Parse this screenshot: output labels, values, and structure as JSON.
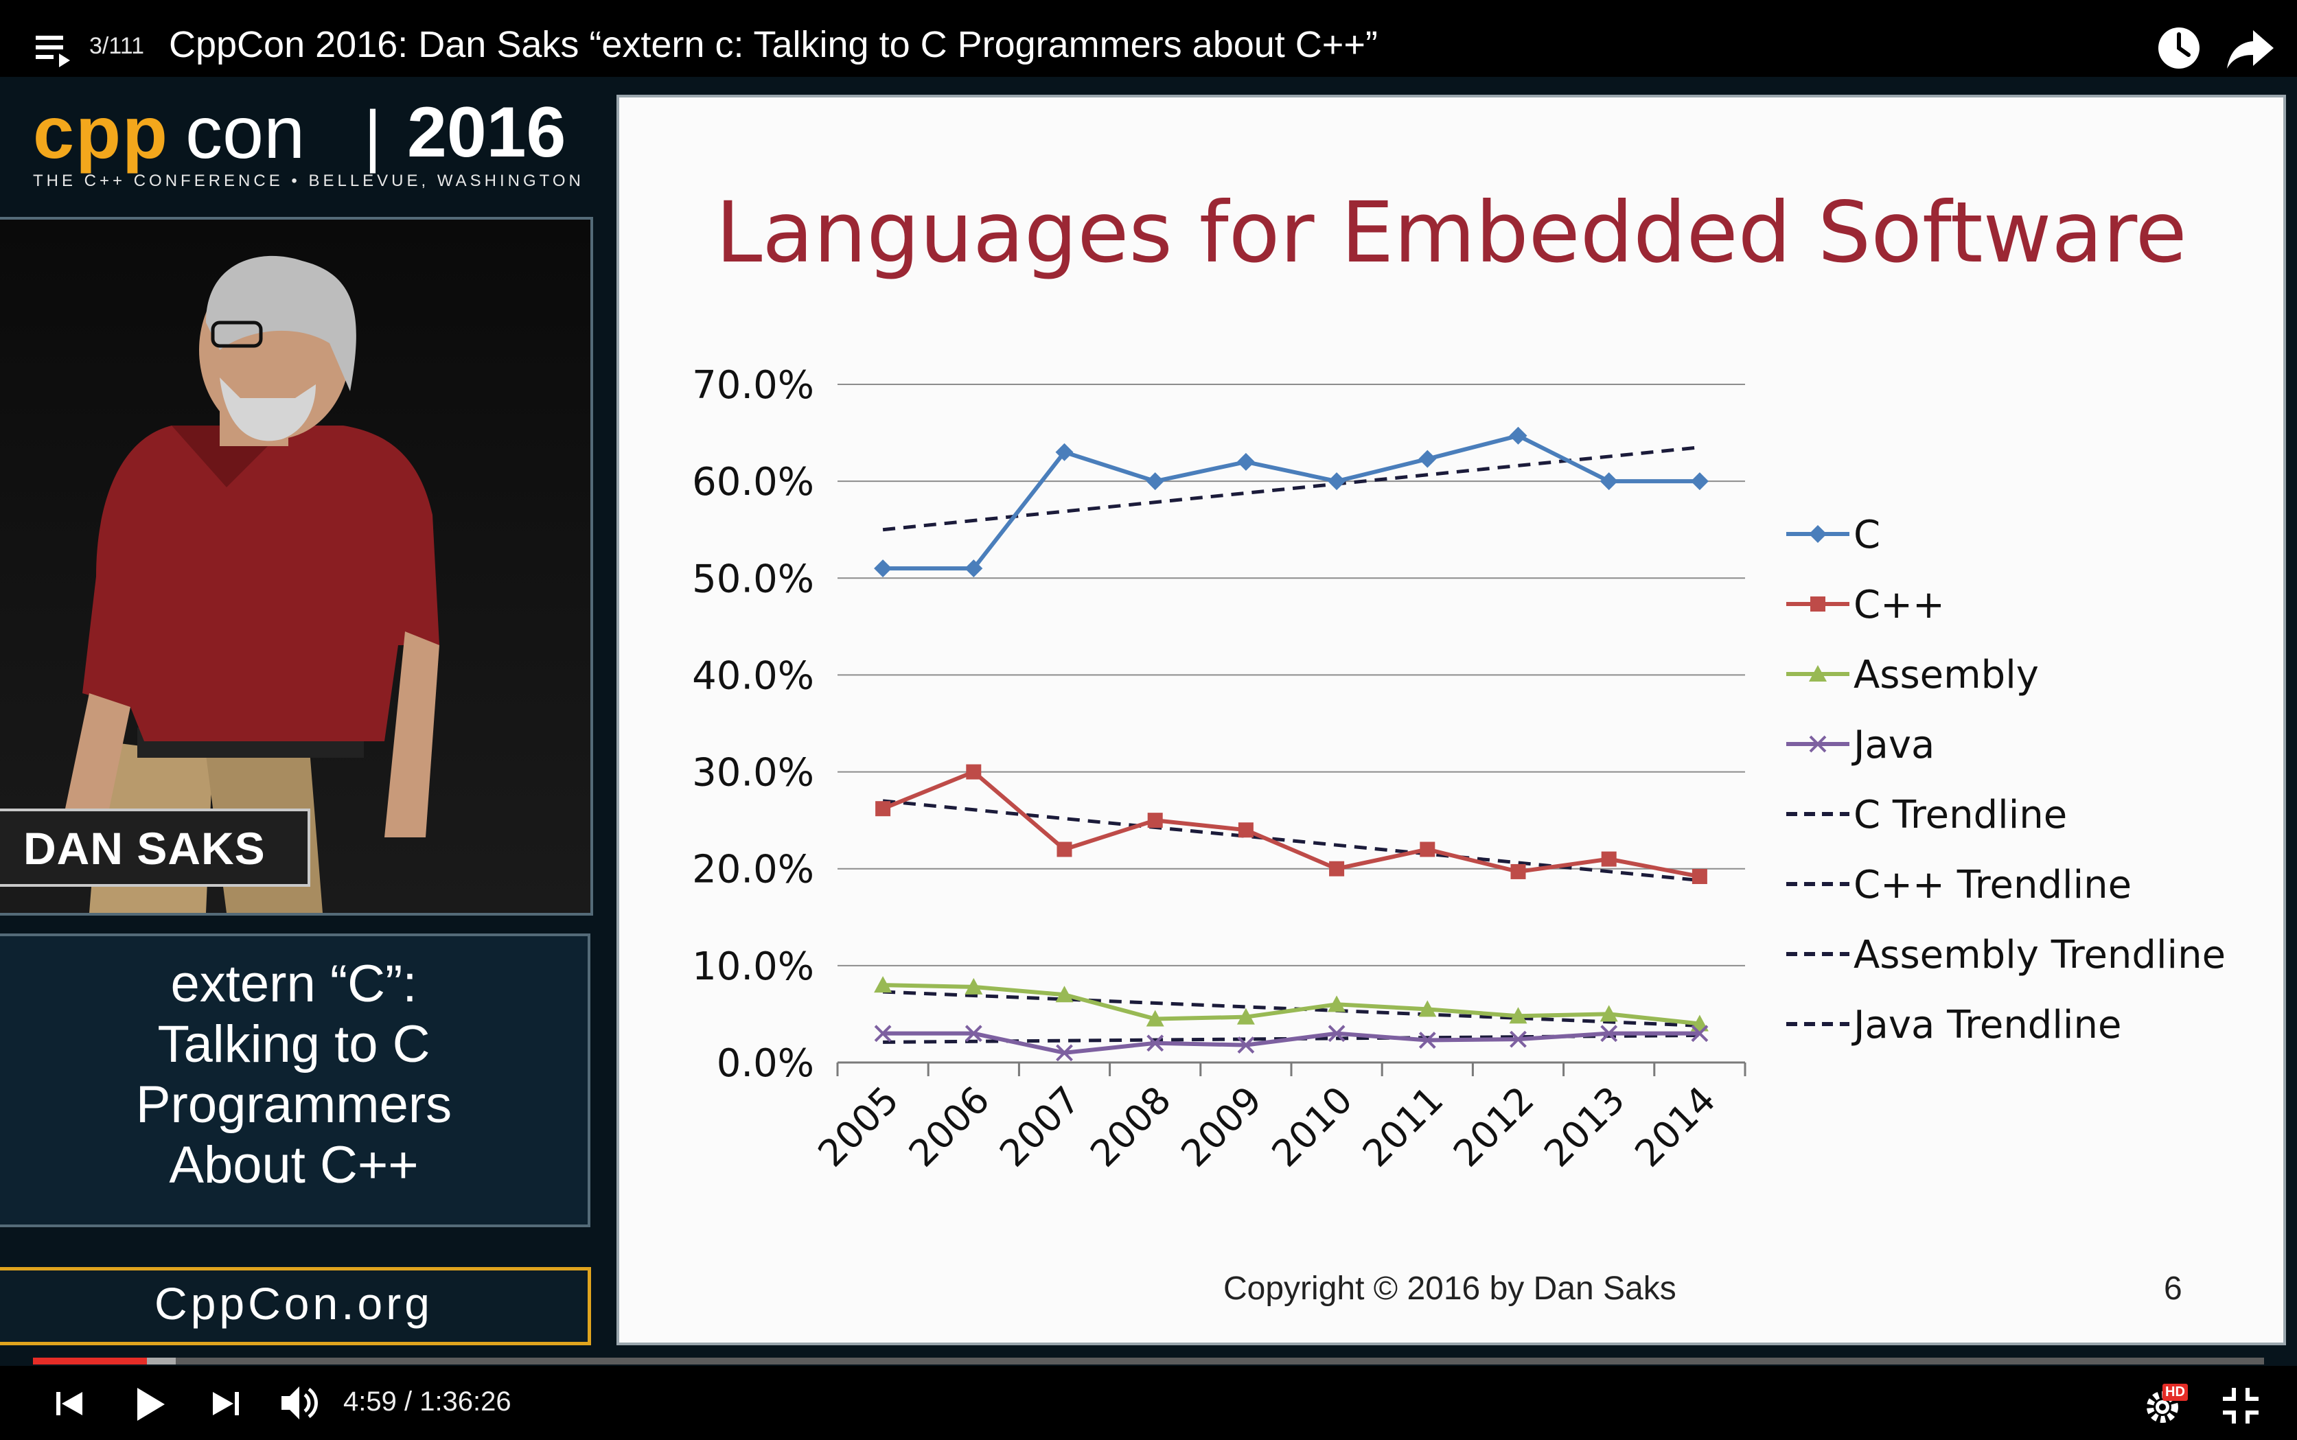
{
  "player": {
    "playlist_position": "3/111",
    "video_title": "CppCon 2016: Dan Saks “extern c: Talking to C Programmers about C++”",
    "current_time": "4:59 / 1:36:26",
    "progress_fraction": 0.051,
    "buffered_fraction": 0.064,
    "hd_label": "HD"
  },
  "logo": {
    "cpp": "cpp",
    "con": "con",
    "separator": "|",
    "year": "2016",
    "tagline": "THE C++ CONFERENCE • BELLEVUE, WASHINGTON"
  },
  "speaker": {
    "name": "DAN SAKS"
  },
  "talk": {
    "lines": [
      "extern “C”:",
      "Talking to C",
      "Programmers",
      "About C++"
    ]
  },
  "site": {
    "url": "CppCon.org"
  },
  "slide": {
    "title": "Languages for Embedded Software",
    "copyright": "Copyright © 2016 by Dan Saks",
    "number": "6"
  },
  "colors": {
    "C": "#4a7ebb",
    "C++": "#be4b48",
    "Assembly": "#98b954",
    "Java": "#7d60a0",
    "trend": "#1b1b3a",
    "title": "#9b2734",
    "accent": "#e52d27",
    "brand": "#f3a71c"
  },
  "chart_data": {
    "type": "line",
    "title": "Languages for Embedded Software",
    "categories": [
      "2005",
      "2006",
      "2007",
      "2008",
      "2009",
      "2010",
      "2011",
      "2012",
      "2013",
      "2014"
    ],
    "y_ticks": [
      "0.0%",
      "10.0%",
      "20.0%",
      "30.0%",
      "40.0%",
      "50.0%",
      "60.0%",
      "70.0%"
    ],
    "ylim": [
      0,
      70
    ],
    "grid": true,
    "legend_position": "right",
    "series": [
      {
        "name": "C",
        "marker": "diamond",
        "values": [
          51,
          51,
          63,
          60,
          62,
          60,
          62.3,
          64.7,
          60,
          60
        ]
      },
      {
        "name": "C++",
        "marker": "square",
        "values": [
          26.2,
          30,
          22,
          25,
          24,
          20,
          22,
          19.7,
          21,
          19.2
        ]
      },
      {
        "name": "Assembly",
        "marker": "triangle",
        "values": [
          8,
          7.8,
          7,
          4.5,
          4.7,
          6,
          5.5,
          4.8,
          5,
          4
        ]
      },
      {
        "name": "Java",
        "marker": "x",
        "values": [
          3,
          3,
          1,
          2,
          1.8,
          3,
          2.3,
          2.4,
          3,
          3
        ]
      }
    ],
    "trendlines": [
      {
        "name": "C Trendline",
        "start": 55,
        "end": 63.5
      },
      {
        "name": "C++ Trendline",
        "start": 27,
        "end": 18.8
      },
      {
        "name": "Assembly Trendline",
        "start": 7.3,
        "end": 3.8
      },
      {
        "name": "Java Trendline",
        "start": 2.1,
        "end": 2.8
      }
    ]
  }
}
